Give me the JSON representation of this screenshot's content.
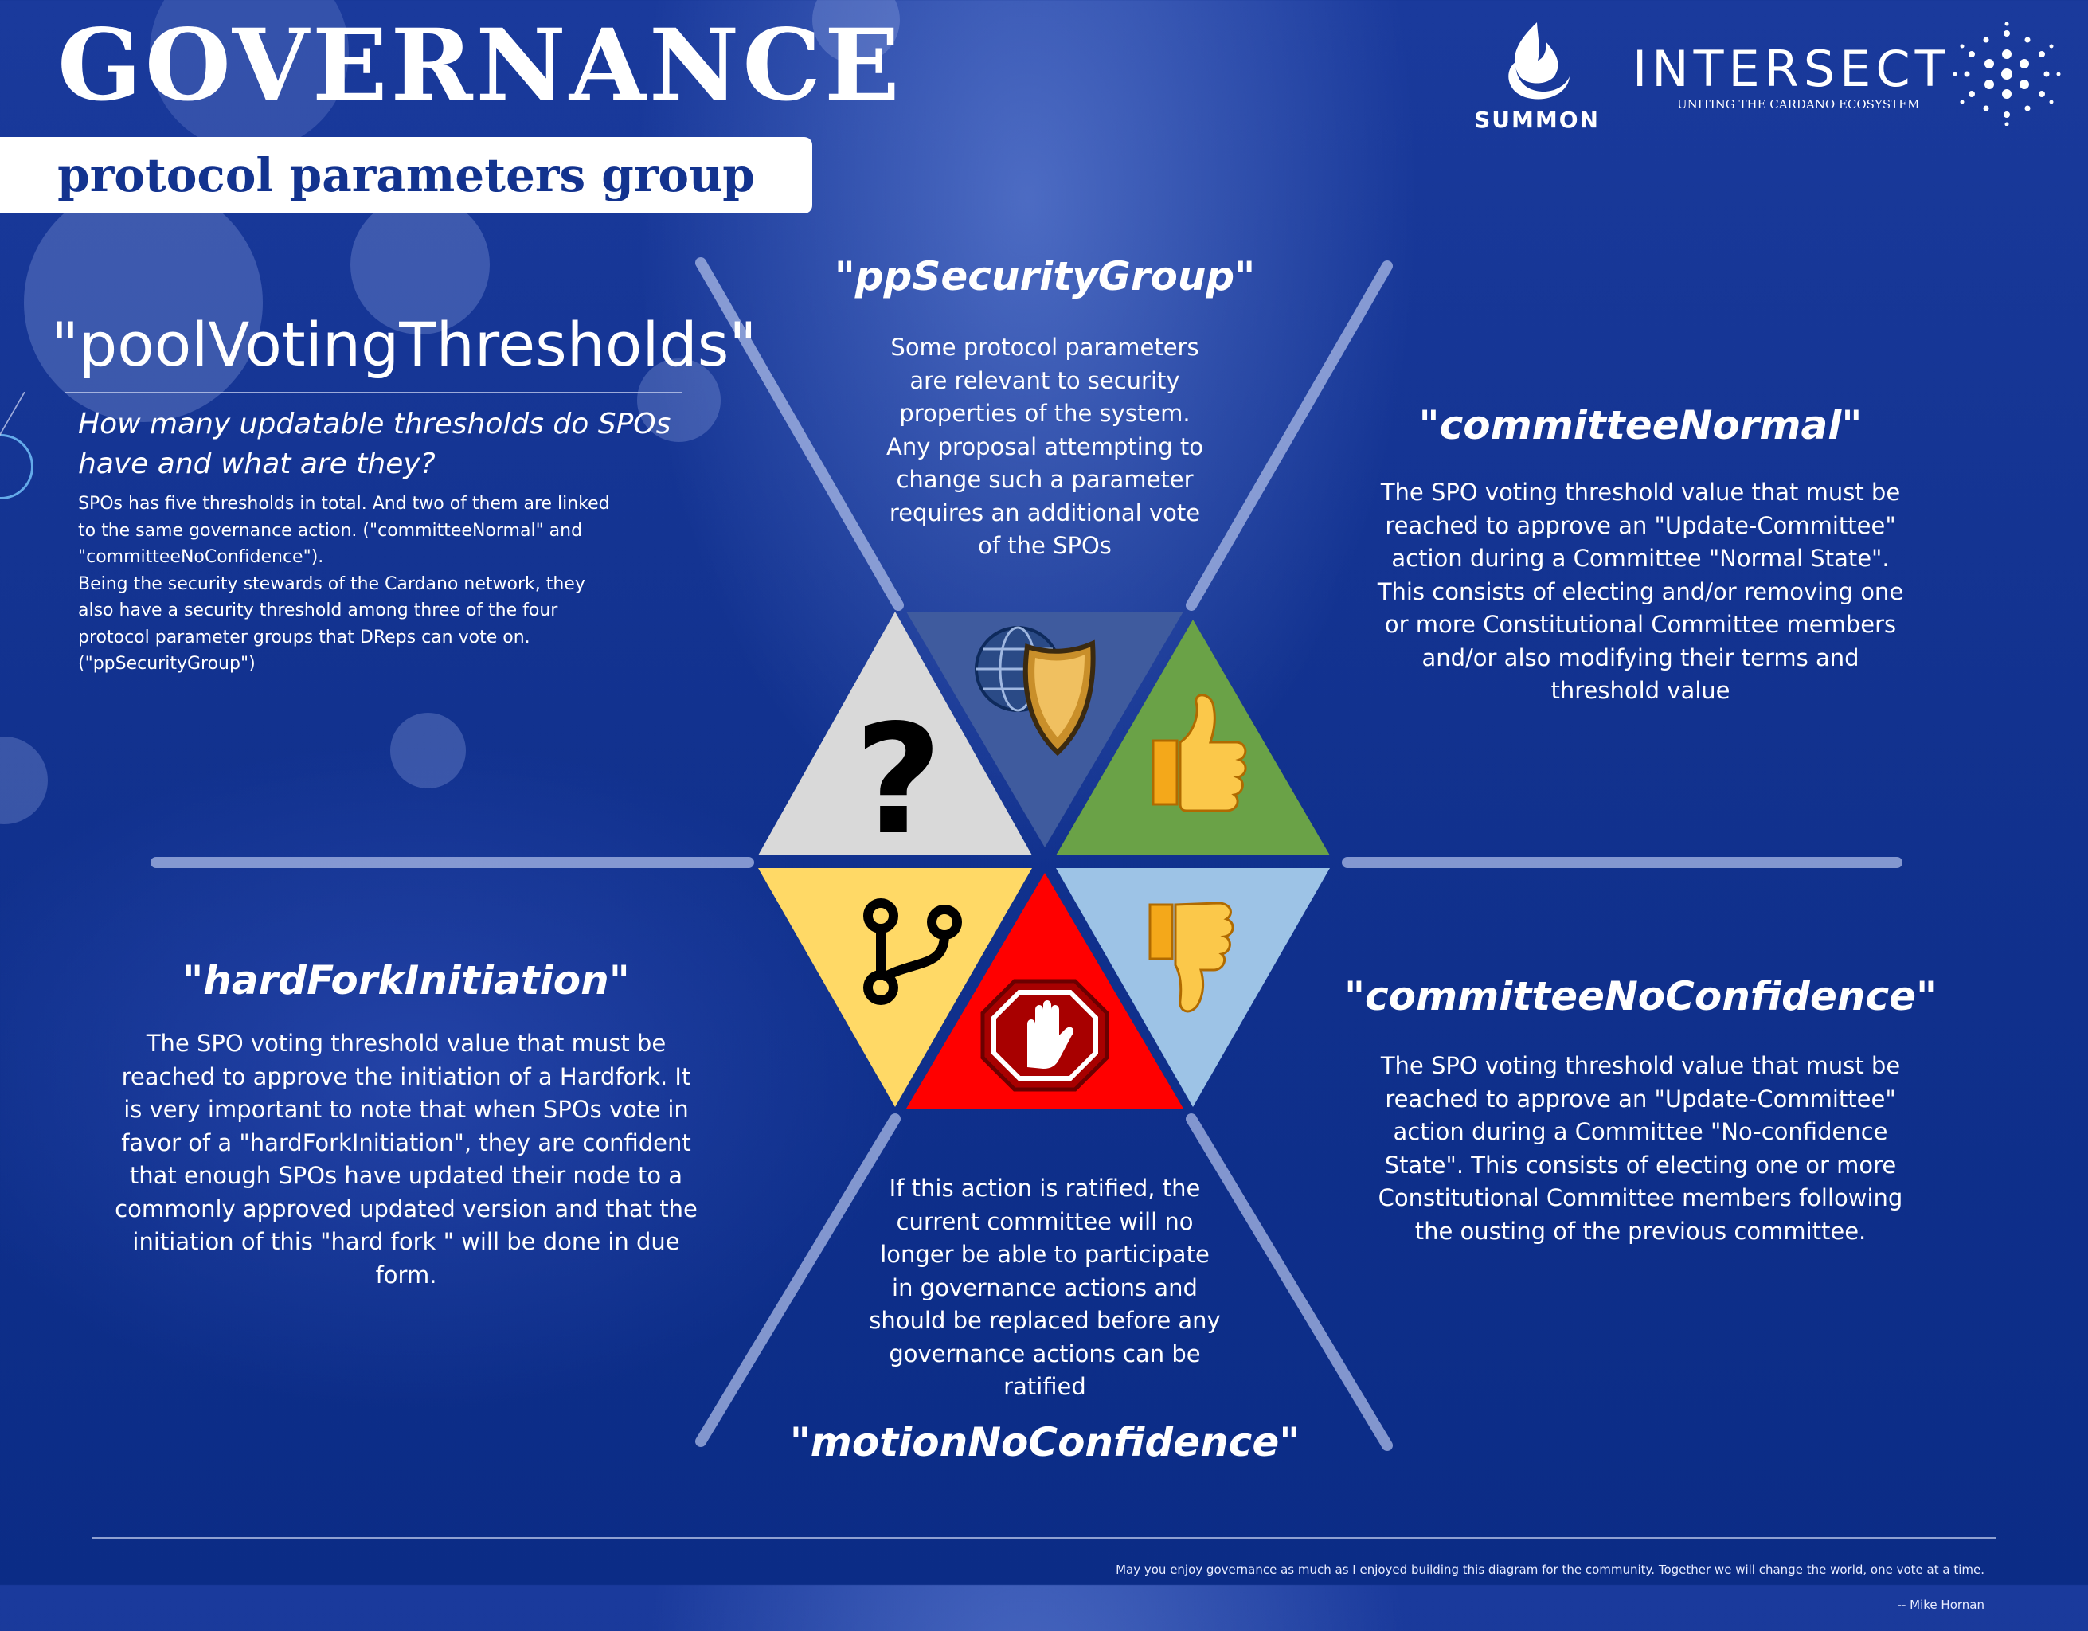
{
  "header": {
    "title": "GOVERNANCE",
    "subtitle": "protocol parameters group"
  },
  "logos": {
    "summon": "SUMMON",
    "intersect": "INTERSECT",
    "intersect_tagline": "UNITING THE CARDANO ECOSYSTEM"
  },
  "pool": {
    "title": "\"poolVotingThresholds\"",
    "question": "How many updatable thresholds do SPOs\nhave and what are they?",
    "body": "SPOs has five thresholds in total. And two of them are linked\nto the same governance action. (\"committeeNormal\" and\n\"committeeNoConfidence\").\nBeing the security stewards of the Cardano network, they\nalso have a security threshold among three of the four\nprotocol parameter groups that DReps can vote on.\n(\"ppSecurityGroup\")"
  },
  "sections": {
    "security": {
      "title": "\"ppSecurityGroup\"",
      "body": "Some protocol parameters\nare relevant to security\nproperties of the system.\nAny proposal attempting to\nchange such a parameter\nrequires an additional vote\nof the SPOs"
    },
    "committee_normal": {
      "title": "\"committeeNormal\"",
      "body": "The SPO voting threshold value that must be\nreached to approve an \"Update-Committee\"\naction during a Committee \"Normal State\".\nThis consists of electing and/or removing one\nor more Constitutional Committee members\nand/or also modifying their terms and\nthreshold value"
    },
    "hard_fork": {
      "title": "\"hardForkInitiation\"",
      "body": "The SPO voting threshold value that must be\nreached to approve the initiation of a Hardfork. It\nis very important to note that when SPOs vote in\nfavor of a \"hardForkInitiation\", they are confident\nthat enough SPOs have updated their node to a\ncommonly approved updated version and that the\ninitiation of this \"hard fork \" will be done in due\nform."
    },
    "committee_no_confidence": {
      "title": "\"committeeNoConfidence\"",
      "body": "The SPO voting threshold value that must be\nreached to approve an \"Update-Committee\"\naction during a Committee \"No-confidence\nState\". This consists of electing one or more\nConstitutional Committee members following\nthe ousting of the previous committee."
    },
    "motion_no_confidence": {
      "title": "\"motionNoConfidence\"",
      "body": "If this action is ratified, the\ncurrent committee will no\nlonger be able to participate\nin governance actions and\nshould be replaced before any\ngovernance actions can be\nratified"
    }
  },
  "hexagon": {
    "question_mark": "?",
    "colors": {
      "question": "#d9d9d9",
      "security": "#3f5b9e",
      "thumbs_up": "#6aa247",
      "fork": "#ffd966",
      "stop": "#ff0000",
      "thumbs_down": "#9dc3e6"
    },
    "icons": [
      "question-mark-icon",
      "globe-shield-icon",
      "thumbs-up-icon",
      "git-fork-icon",
      "stop-hand-icon",
      "thumbs-down-icon"
    ]
  },
  "footer": {
    "quote": "May you enjoy governance as much as I enjoyed building this diagram for the community. Together we will change the world, one vote at a time.",
    "author": "-- Mike Hornan"
  }
}
